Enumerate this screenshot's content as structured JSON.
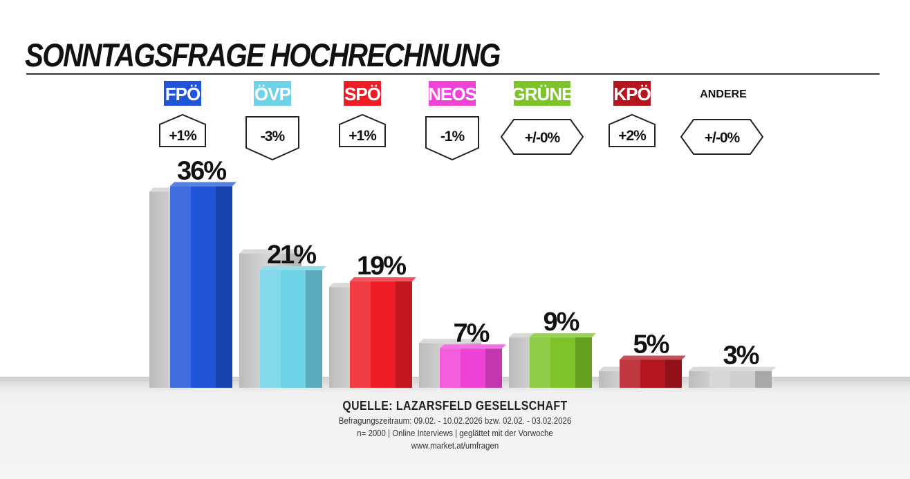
{
  "title": "SONNTAGSFRAGE HOCHRECHNUNG",
  "chart_data": {
    "type": "bar",
    "categories": [
      "FPÖ",
      "ÖVP",
      "SPÖ",
      "NEOS",
      "GRÜNE",
      "KPÖ",
      "ANDERE"
    ],
    "series": [
      {
        "values": [
          36,
          21,
          19,
          7,
          9,
          5,
          3
        ]
      }
    ],
    "value_labels": [
      "36%",
      "21%",
      "19%",
      "7%",
      "9%",
      "5%",
      "3%"
    ],
    "changes": [
      "+1%",
      "-3%",
      "+1%",
      "-1%",
      "+/-0%",
      "+2%",
      "+/-0%"
    ],
    "change_direction": [
      "up",
      "down",
      "up",
      "down",
      "flat",
      "up",
      "flat"
    ],
    "previous_values": [
      35,
      24,
      18,
      8,
      9,
      3,
      3
    ],
    "colors": [
      "#1f55d6",
      "#6ed3e6",
      "#ee1c25",
      "#ef43d8",
      "#7cc42a",
      "#b3161f",
      "#c8c8c8"
    ],
    "label_styles": [
      "box",
      "box",
      "box",
      "box",
      "box",
      "box",
      "text"
    ],
    "ylim": [
      0,
      40
    ],
    "grid": false,
    "legend": "none"
  },
  "source": {
    "heading": "QUELLE: LAZARSFELD GESELLSCHAFT",
    "period": "Befragungszeitraum:  09.02. - 10.02.2026  bzw. 02.02. - 03.02.2026",
    "sample": "n= 2000 | Online Interviews | geglättet mit der Vorwoche",
    "url": "www.market.at/umfragen"
  }
}
